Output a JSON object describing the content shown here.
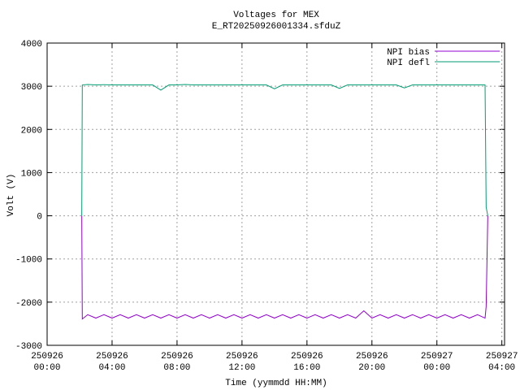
{
  "chart_data": {
    "type": "line",
    "title": "Voltages for MEX",
    "subtitle": "E_RT20250926001334.sfduZ",
    "x_label": "Time (yymmdd HH:MM)",
    "y_label": "Volt (V)",
    "x": [
      "250926 02:08",
      "250926 02:10",
      "250926 02:30",
      "250926 03:00",
      "250926 03:30",
      "250926 04:00",
      "250926 04:30",
      "250926 05:00",
      "250926 05:30",
      "250926 06:00",
      "250926 06:30",
      "250926 07:00",
      "250926 07:30",
      "250926 08:00",
      "250926 08:30",
      "250926 09:00",
      "250926 09:30",
      "250926 10:00",
      "250926 10:30",
      "250926 11:00",
      "250926 11:30",
      "250926 12:00",
      "250926 12:30",
      "250926 13:00",
      "250926 13:30",
      "250926 14:00",
      "250926 14:30",
      "250926 15:00",
      "250926 15:30",
      "250926 16:00",
      "250926 16:30",
      "250926 17:00",
      "250926 17:30",
      "250926 18:00",
      "250926 18:30",
      "250926 19:00",
      "250926 19:30",
      "250926 20:00",
      "250926 20:30",
      "250926 21:00",
      "250926 21:30",
      "250926 22:00",
      "250926 22:30",
      "250926 23:00",
      "250926 23:30",
      "250927 00:00",
      "250927 00:30",
      "250927 01:00",
      "250927 01:30",
      "250927 02:00",
      "250927 02:30",
      "250927 02:58",
      "250927 03:02",
      "250927 03:08"
    ],
    "series": [
      {
        "name": "NPI bias",
        "color": "#9400d3",
        "values": [
          0,
          -2390,
          -2290,
          -2370,
          -2290,
          -2370,
          -2290,
          -2370,
          -2290,
          -2370,
          -2290,
          -2370,
          -2290,
          -2370,
          -2290,
          -2370,
          -2290,
          -2370,
          -2290,
          -2370,
          -2290,
          -2370,
          -2290,
          -2370,
          -2290,
          -2370,
          -2290,
          -2370,
          -2290,
          -2370,
          -2290,
          -2370,
          -2290,
          -2370,
          -2290,
          -2370,
          -2200,
          -2370,
          -2290,
          -2370,
          -2290,
          -2370,
          -2290,
          -2370,
          -2290,
          -2370,
          -2290,
          -2370,
          -2290,
          -2370,
          -2290,
          -2370,
          -2100,
          0
        ]
      },
      {
        "name": "NPI defl",
        "color": "#009e73",
        "values": [
          0,
          3030,
          3040,
          3030,
          3035,
          3030,
          3030,
          3030,
          3030,
          3030,
          3030,
          2910,
          3030,
          3030,
          3040,
          3030,
          3030,
          3030,
          3030,
          3030,
          3030,
          3030,
          3030,
          3030,
          3030,
          2940,
          3030,
          3030,
          3030,
          3030,
          3030,
          3030,
          3030,
          2950,
          3030,
          3030,
          3030,
          3030,
          3030,
          3030,
          3030,
          2960,
          3030,
          3030,
          3030,
          3030,
          3030,
          3030,
          3030,
          3030,
          3030,
          3030,
          200,
          0
        ]
      }
    ],
    "xlim": [
      "250926 00:00",
      "250927 04:10"
    ],
    "xticks": [
      "250926 00:00",
      "250926 04:00",
      "250926 08:00",
      "250926 12:00",
      "250926 16:00",
      "250926 20:00",
      "250927 00:00",
      "250927 04:00"
    ],
    "ylim": [
      -3000,
      4000
    ],
    "yticks": [
      -3000,
      -2000,
      -1000,
      0,
      1000,
      2000,
      3000,
      4000
    ],
    "grid": true,
    "legend": "top-right"
  }
}
